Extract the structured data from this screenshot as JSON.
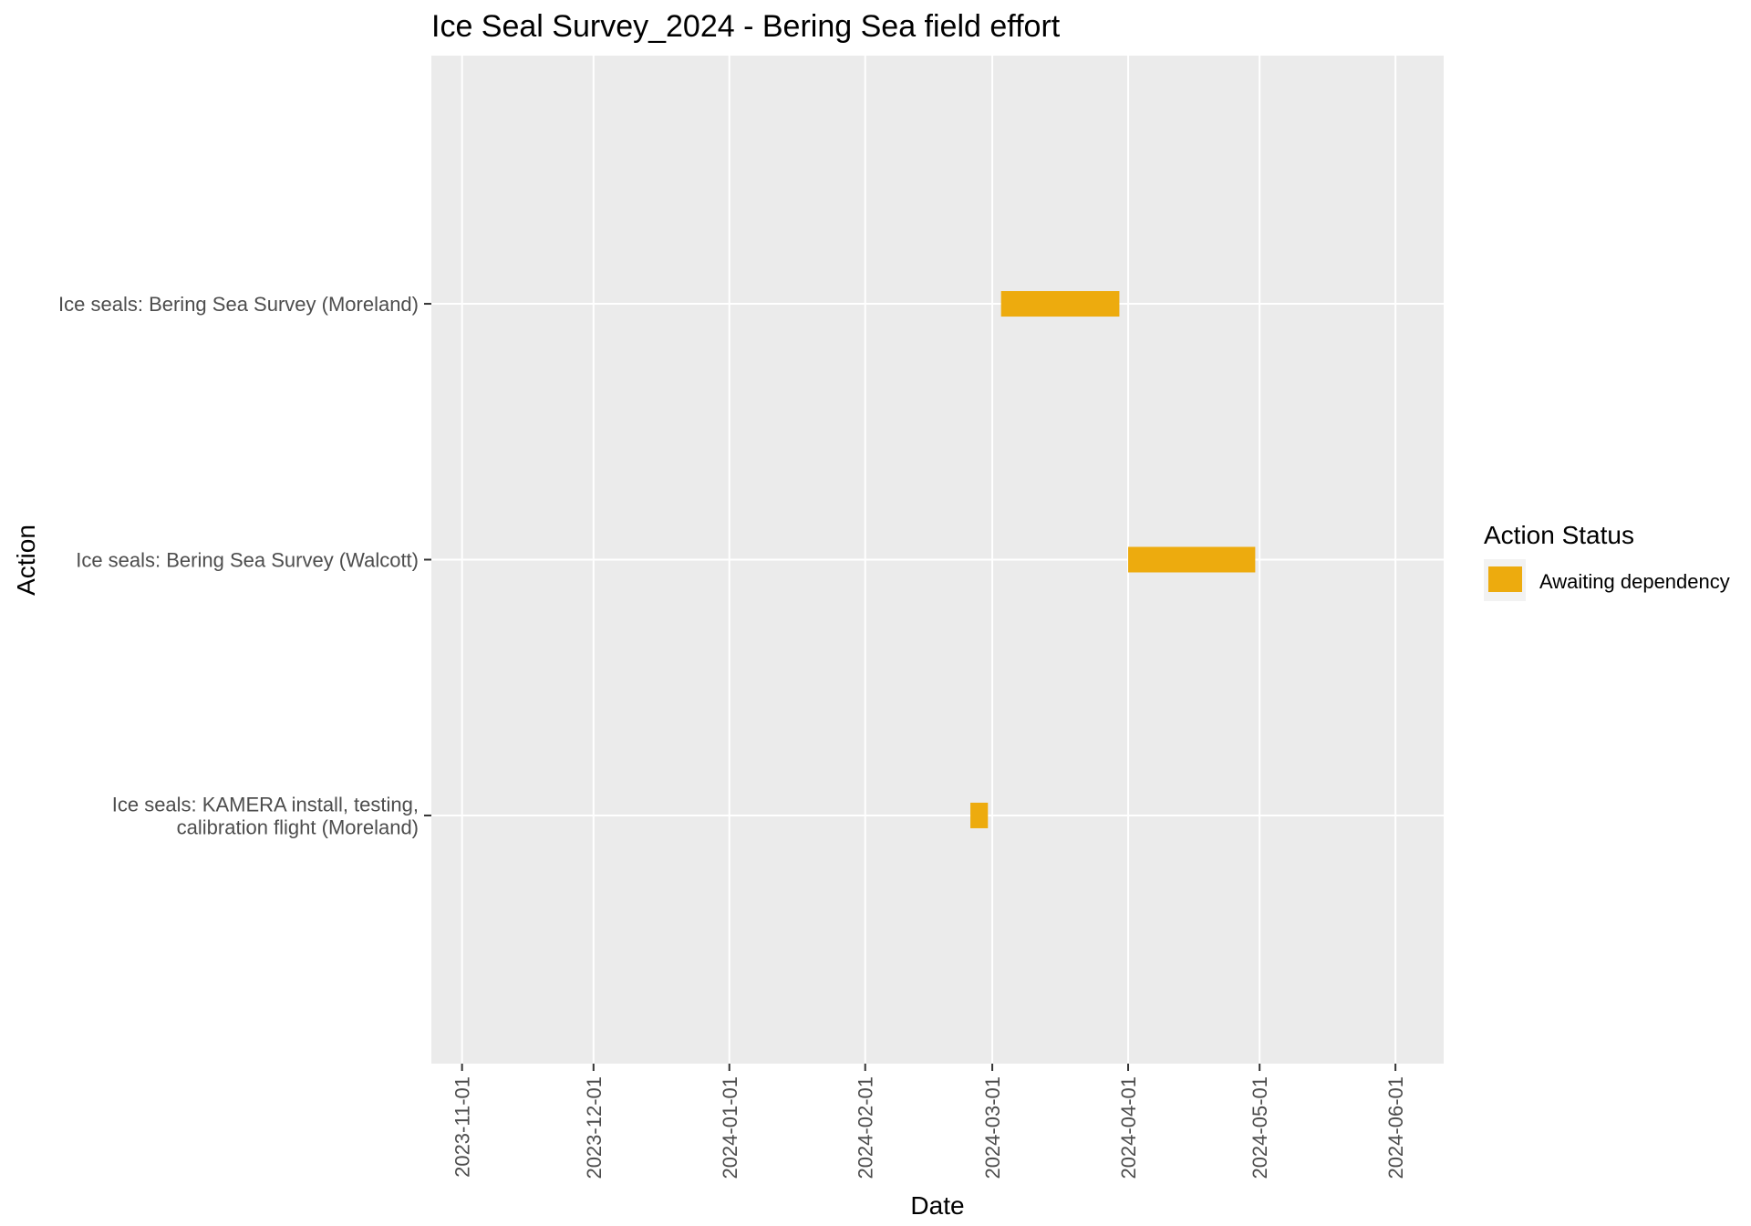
{
  "chart_data": {
    "type": "bar",
    "orientation": "horizontal-range",
    "title": "Ice Seal Survey_2024 - Bering Sea field effort",
    "xlabel": "Date",
    "ylabel": "Action",
    "xlim": [
      "2023-10-25",
      "2024-06-12"
    ],
    "x_ticks": [
      "2023-11-01",
      "2023-12-01",
      "2024-01-01",
      "2024-02-01",
      "2024-03-01",
      "2024-04-01",
      "2024-05-01",
      "2024-06-01"
    ],
    "grid": true,
    "legend": {
      "title": "Action Status",
      "placement": "right",
      "entries": [
        {
          "label": "Awaiting dependency",
          "color": "#EDAB0E"
        }
      ]
    },
    "categories": [
      [
        "Ice seals: Bering Sea Survey (Moreland)"
      ],
      [
        "Ice seals: Bering Sea Survey (Walcott)"
      ],
      [
        "Ice seals: KAMERA install, testing,",
        "calibration flight (Moreland)"
      ]
    ],
    "series": [
      {
        "name": "Awaiting dependency",
        "color": "#EDAB0E",
        "ranges": [
          {
            "category_index": 0,
            "start": "2024-03-03",
            "end": "2024-03-30"
          },
          {
            "category_index": 1,
            "start": "2024-04-01",
            "end": "2024-04-30"
          },
          {
            "category_index": 2,
            "start": "2024-02-25",
            "end": "2024-02-29"
          }
        ]
      }
    ]
  }
}
